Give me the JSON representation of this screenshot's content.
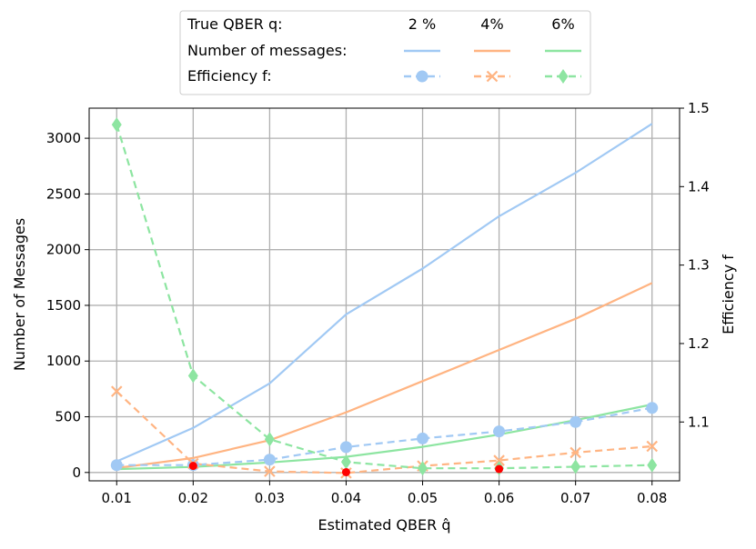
{
  "chart_data": {
    "type": "line",
    "x": [
      0.01,
      0.02,
      0.03,
      0.04,
      0.05,
      0.06,
      0.07,
      0.08
    ],
    "x_tick_labels": [
      "0.01",
      "0.02",
      "0.03",
      "0.04",
      "0.05",
      "0.06",
      "0.07",
      "0.08"
    ],
    "xlim": [
      0.0064,
      0.0836
    ],
    "xlabel": "Estimated QBER q̂",
    "ylabel_left": "Number of Messages",
    "ylabel_right": "Efficiency f",
    "ylim_left": [
      -75,
      3270
    ],
    "ylim_right": [
      1.025,
      1.5
    ],
    "yticks_left": [
      0,
      500,
      1000,
      1500,
      2000,
      2500,
      3000
    ],
    "yticks_left_labels": [
      "0",
      "500",
      "1000",
      "1500",
      "2000",
      "2500",
      "3000"
    ],
    "yticks_right": [
      1.1,
      1.2,
      1.3,
      1.4,
      1.5
    ],
    "yticks_right_labels": [
      "1.1",
      "1.2",
      "1.3",
      "1.4",
      "1.5"
    ],
    "grid": true,
    "legend_position": "top-center",
    "legend": {
      "row_labels": [
        "True QBER q:",
        "Number of messages:",
        "Efficiency f:"
      ],
      "column_headers": [
        "2 %",
        "4%",
        "6%"
      ]
    },
    "colors": {
      "blue": "#a1c9f4",
      "orange": "#ffb482",
      "green": "#8de5a1",
      "highlight": "#ff0000"
    },
    "series": [
      {
        "qber": "2 %",
        "axis": "left",
        "style": "solid",
        "color": "#a1c9f4",
        "values": [
          100,
          400,
          800,
          1420,
          1830,
          2300,
          2690,
          3130
        ]
      },
      {
        "qber": "4%",
        "axis": "left",
        "style": "solid",
        "color": "#ffb482",
        "values": [
          40,
          130,
          290,
          540,
          820,
          1100,
          1380,
          1700
        ]
      },
      {
        "qber": "6%",
        "axis": "left",
        "style": "solid",
        "color": "#8de5a1",
        "values": [
          30,
          50,
          90,
          140,
          230,
          340,
          470,
          610
        ]
      },
      {
        "qber": "2 %",
        "axis": "right",
        "style": "dashed",
        "marker": "circle",
        "color": "#a1c9f4",
        "values": [
          1.045,
          1.045,
          1.052,
          1.068,
          1.079,
          1.088,
          1.1,
          1.118
        ]
      },
      {
        "qber": "4%",
        "axis": "right",
        "style": "dashed",
        "marker": "x",
        "color": "#ffb482",
        "values": [
          1.139,
          1.047,
          1.037,
          1.035,
          1.044,
          1.051,
          1.061,
          1.069
        ]
      },
      {
        "qber": "6%",
        "axis": "right",
        "style": "dashed",
        "marker": "diamond",
        "color": "#8de5a1",
        "values": [
          1.479,
          1.159,
          1.078,
          1.049,
          1.041,
          1.041,
          1.043,
          1.045
        ]
      }
    ],
    "highlighted_points_right_axis": [
      {
        "x": 0.02,
        "y": 1.044
      },
      {
        "x": 0.04,
        "y": 1.036
      },
      {
        "x": 0.06,
        "y": 1.04
      }
    ]
  }
}
